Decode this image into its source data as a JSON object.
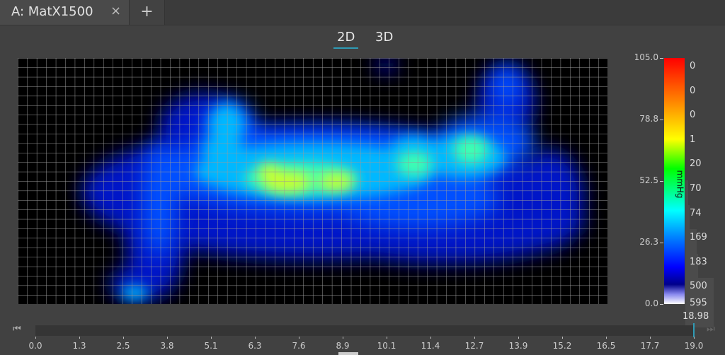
{
  "tabs": [
    {
      "label": "A: MatX1500",
      "close_icon": "close-icon"
    }
  ],
  "add_tab_icon": "plus-icon",
  "add_tab_label": "+",
  "close_label": "×",
  "view_modes": [
    {
      "label": "2D",
      "active": true
    },
    {
      "label": "3D",
      "active": false
    }
  ],
  "accent_color": "#2f9bb5",
  "colorbar": {
    "unit": "mmHg",
    "range": [
      0.0,
      105.0
    ],
    "ticks": [
      "105.0",
      "78.8",
      "52.5",
      "26.3",
      "0.0"
    ],
    "counts": [
      "0",
      "0",
      "0",
      "1",
      "20",
      "70",
      "74",
      "169",
      "183",
      "500",
      "595"
    ],
    "current_value": "18.98"
  },
  "heatmap": {
    "colormap": "jet",
    "grid": true
  },
  "timeline": {
    "ticks": [
      "0.0",
      "1.3",
      "2.5",
      "3.8",
      "5.1",
      "6.3",
      "7.6",
      "8.9",
      "10.1",
      "11.4",
      "12.7",
      "13.9",
      "15.2",
      "16.5",
      "17.7",
      "19.0"
    ],
    "range": [
      0.0,
      19.0
    ],
    "current": 18.98,
    "skip_start_icon": "skip-start-icon",
    "skip_end_icon": "skip-end-icon"
  }
}
